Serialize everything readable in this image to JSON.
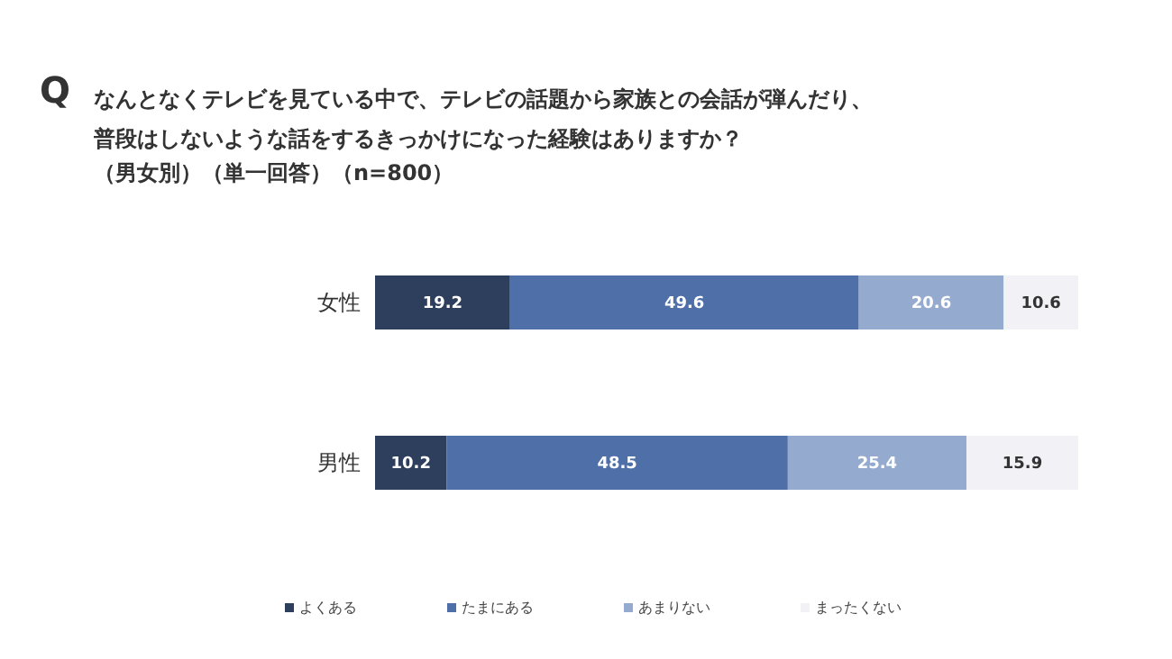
{
  "chart_data": {
    "type": "bar",
    "orientation": "horizontal",
    "stacked": true,
    "title": "なんとなくテレビを見ている中で、テレビの話題から家族との会話が弾んだり、普段はしないような話をするきっかけになった経験はありますか？",
    "subtitle": "（男女別）（単一回答）（n=800）",
    "annotations": [
      "Q"
    ],
    "categories": [
      "女性",
      "男性"
    ],
    "series": [
      {
        "name": "よくある",
        "color": "#2e3f5e",
        "values": [
          19.2,
          10.2
        ]
      },
      {
        "name": "たまにある",
        "color": "#4e6fa8",
        "values": [
          49.6,
          48.5
        ]
      },
      {
        "name": "あまりない",
        "color": "#94aacf",
        "values": [
          20.6,
          25.4
        ]
      },
      {
        "name": "まったくない",
        "color": "#f1f1f6",
        "values": [
          10.6,
          15.9
        ]
      }
    ],
    "xlim": [
      0,
      100
    ],
    "tick_labels": "y",
    "data_labels": true,
    "legend": "bottom"
  }
}
